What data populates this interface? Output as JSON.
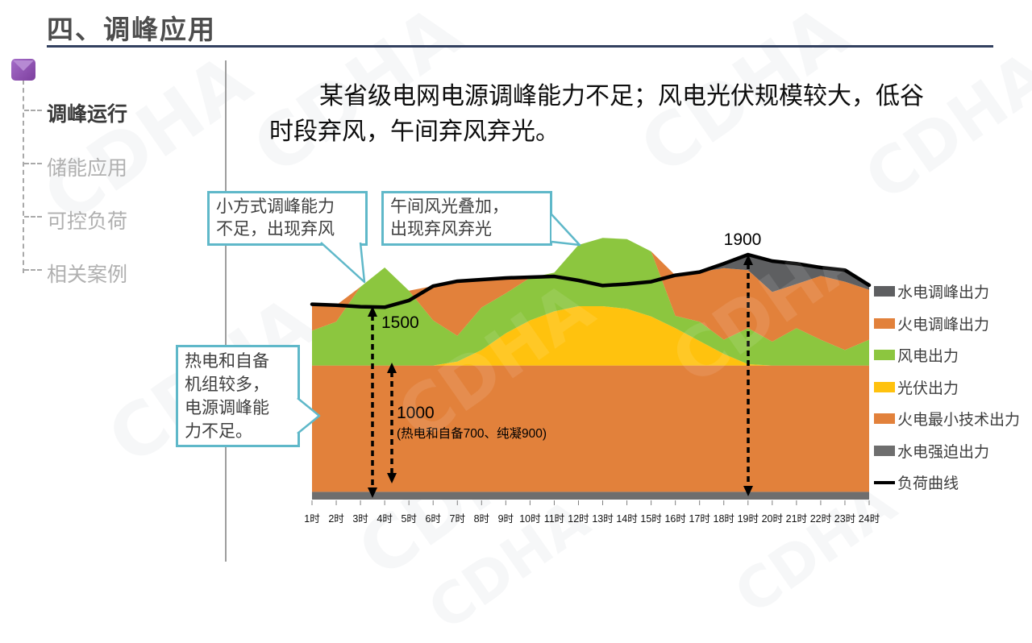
{
  "header": {
    "title": "四、调峰应用"
  },
  "sidebar": {
    "items": [
      {
        "label": "调峰运行",
        "active": true
      },
      {
        "label": "储能应用",
        "active": false
      },
      {
        "label": "可控负荷",
        "active": false
      },
      {
        "label": "相关案例",
        "active": false
      }
    ]
  },
  "intro": {
    "line1": "某省级电网电源调峰能力不足；风电光伏规模较大，低谷",
    "line2": "时段弃风，午间弃风弃光。"
  },
  "callouts": [
    {
      "lines": [
        "小方式调峰能力",
        "不足，出现弃风"
      ]
    },
    {
      "lines": [
        "午间风光叠加，",
        "出现弃风弃光"
      ]
    },
    {
      "lines": [
        "热电和自备",
        "机组较多，",
        "电源调峰能",
        "力不足。"
      ]
    }
  ],
  "annotations": {
    "peak": "1900",
    "valley": "1500",
    "base": "1000",
    "base_note": "(热电和自备700、纯凝900)"
  },
  "watermark": {
    "text": "CDHA"
  },
  "chart_data": {
    "type": "area",
    "title": "",
    "xlabel": "",
    "ylabel": "",
    "ylim": [
      0,
      2400
    ],
    "x_labels": [
      "1时",
      "2时",
      "3时",
      "4时",
      "5时",
      "6时",
      "7时",
      "8时",
      "9时",
      "10时",
      "11时",
      "12时",
      "13时",
      "14时",
      "15时",
      "16时",
      "17时",
      "18时",
      "19时",
      "20时",
      "21时",
      "22时",
      "23时",
      "24时"
    ],
    "series": [
      {
        "name": "水电强迫出力",
        "color": "#6E6E6E",
        "values": [
          60,
          60,
          60,
          60,
          60,
          60,
          60,
          60,
          60,
          60,
          60,
          60,
          60,
          60,
          60,
          60,
          60,
          60,
          60,
          60,
          60,
          60,
          60,
          60
        ]
      },
      {
        "name": "火电最小技术出力",
        "color": "#E2813B",
        "values": [
          980,
          980,
          980,
          980,
          980,
          980,
          980,
          980,
          980,
          980,
          980,
          980,
          980,
          980,
          980,
          980,
          980,
          980,
          980,
          980,
          980,
          980,
          980,
          980
        ]
      },
      {
        "name": "光伏出力",
        "color": "#FFC20E",
        "values": [
          0,
          0,
          0,
          0,
          0,
          0,
          30,
          120,
          250,
          350,
          420,
          460,
          460,
          440,
          380,
          290,
          190,
          90,
          10,
          0,
          0,
          0,
          0,
          0
        ]
      },
      {
        "name": "风电出力",
        "color": "#8CC63F",
        "values": [
          270,
          340,
          610,
          760,
          580,
          350,
          200,
          330,
          310,
          330,
          300,
          475,
          530,
          540,
          505,
          95,
          150,
          110,
          280,
          185,
          290,
          200,
          120,
          200
        ]
      },
      {
        "name": "火电调峰出力",
        "color": "#E2813B",
        "values": [
          205,
          128,
          0,
          0,
          0,
          266,
          424,
          216,
          119,
          0,
          0,
          0,
          0,
          0,
          0,
          315,
          385,
          555,
          450,
          385,
          342,
          495,
          530,
          387
        ]
      },
      {
        "name": "水电调峰出力",
        "color": "#5E5F61",
        "values": [
          0,
          0,
          0,
          0,
          0,
          0,
          0,
          0,
          0,
          0,
          0,
          0,
          0,
          0,
          0,
          0,
          0,
          35,
          120,
          240,
          158,
          65,
          88,
          36
        ]
      }
    ],
    "load_curve": {
      "name": "负荷曲线",
      "color": "#000000",
      "values": [
        1515,
        1508,
        1496,
        1492,
        1544,
        1656,
        1694,
        1706,
        1719,
        1725,
        1731,
        1700,
        1660,
        1672,
        1690,
        1740,
        1765,
        1830,
        1900,
        1850,
        1830,
        1800,
        1780,
        1663
      ]
    },
    "legend": [
      {
        "label": "水电调峰出力",
        "color": "#5E5F61",
        "swatch": "box"
      },
      {
        "label": "火电调峰出力",
        "color": "#E2813B",
        "swatch": "box"
      },
      {
        "label": "风电出力",
        "color": "#8CC63F",
        "swatch": "box"
      },
      {
        "label": "光伏出力",
        "color": "#FFC20E",
        "swatch": "box"
      },
      {
        "label": "火电最小技术出力",
        "color": "#E2813B",
        "swatch": "box"
      },
      {
        "label": "水电强迫出力",
        "color": "#6E6E6E",
        "swatch": "box"
      },
      {
        "label": "负荷曲线",
        "color": "#000000",
        "swatch": "line"
      }
    ]
  }
}
